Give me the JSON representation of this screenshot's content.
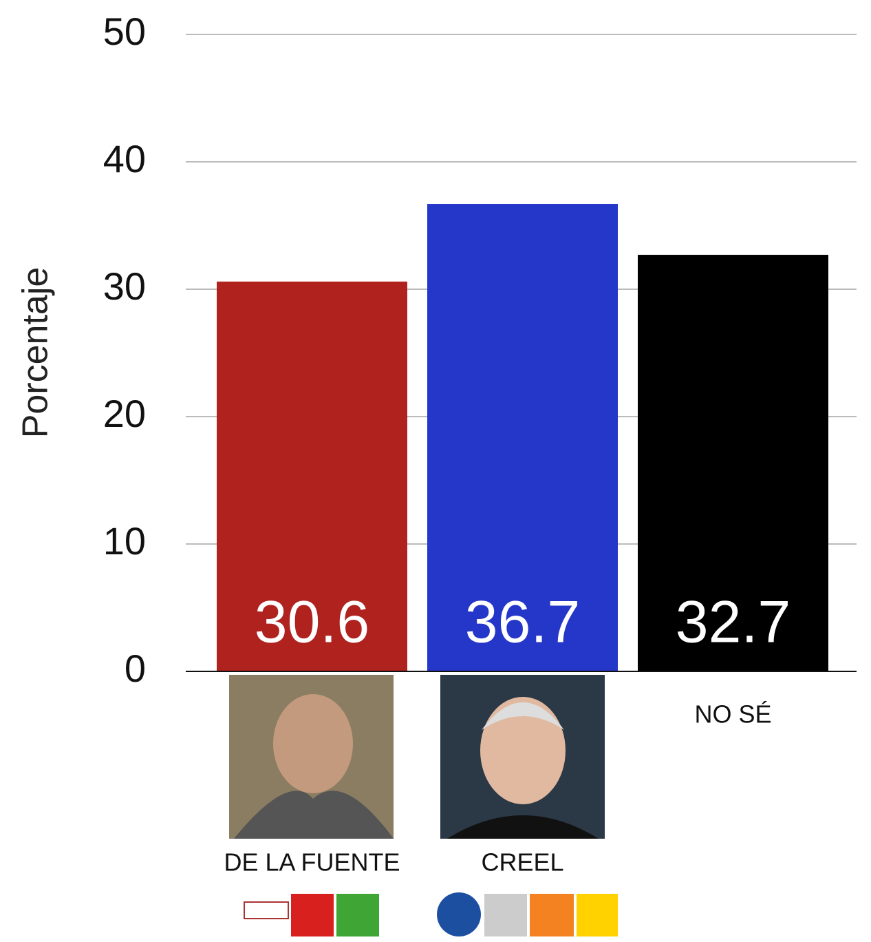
{
  "chart_data": {
    "type": "bar",
    "ylabel": "Porcentaje",
    "categories": [
      "DE LA FUENTE",
      "CREEL",
      "NO SÉ"
    ],
    "values": [
      30.6,
      36.7,
      32.7
    ],
    "colors": [
      "#b0221e",
      "#2537c9",
      "#000000"
    ],
    "ylim": [
      0,
      50
    ],
    "yticks": [
      0,
      10,
      20,
      30,
      40,
      50
    ],
    "grid": true
  }
}
